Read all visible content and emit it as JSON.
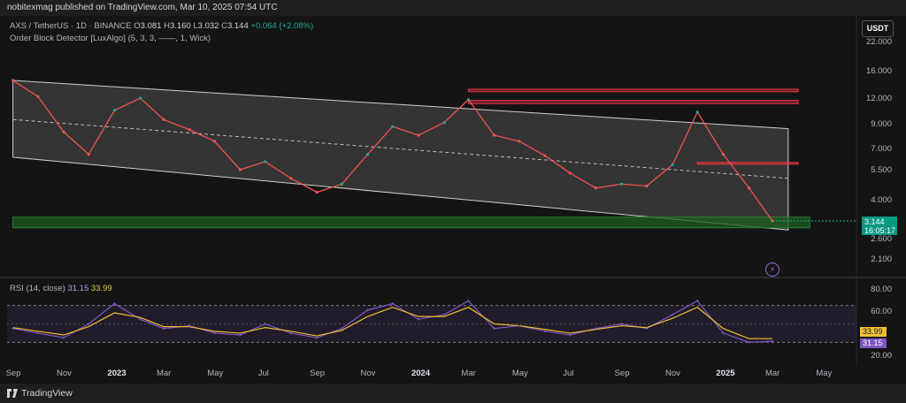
{
  "header": {
    "publisher": "nobitexmag published on TradingView.com, Mar 10, 2025 07:54 UTC"
  },
  "legend": {
    "symbol": "AXS / TetherUS · 1D · BINANCE",
    "o_label": "O",
    "o": "3.081",
    "h_label": "H",
    "h": "3.160",
    "l_label": "L",
    "l": "3.032",
    "c_label": "C",
    "c": "3.144",
    "change": "+0.064 (+2.08%)",
    "indicator": "Order Block Detector [LuxAlgo] (5, 3, 3, ——, 1, Wick)"
  },
  "price_axis": {
    "currency": "USDT",
    "ticks": [
      "22.000",
      "16.000",
      "12.000",
      "9.000",
      "7.000",
      "5.500",
      "4.000",
      "2.600",
      "2.100"
    ]
  },
  "price_tag": {
    "price": "3.144",
    "countdown": "16:05:17"
  },
  "rsi": {
    "label": "RSI (14, close)",
    "rsi_value": "31.15",
    "ma_value": "33.99",
    "ticks": [
      "80.00",
      "60.00",
      "20.00"
    ],
    "upper_band": 70,
    "lower_band": 30
  },
  "colors": {
    "up": "#26a69a",
    "down": "#ef5350",
    "rsi": "#7e57c2",
    "rsi_ma": "#f0c030",
    "bull_ob": "#1b5e20",
    "bear_ob": "#f23645"
  },
  "footer": {
    "brand": "TradingView"
  },
  "chart_data": [
    {
      "type": "line",
      "title": "AXS / TetherUS · 1D · BINANCE",
      "scale": "log",
      "ylim": [
        1.7,
        26
      ],
      "x": [
        "2022-09",
        "2022-10",
        "2022-11",
        "2022-12",
        "2023-01",
        "2023-02",
        "2023-03",
        "2023-04",
        "2023-05",
        "2023-06",
        "2023-07",
        "2023-08",
        "2023-09",
        "2023-10",
        "2023-11",
        "2023-12",
        "2024-01",
        "2024-02",
        "2024-03",
        "2024-04",
        "2024-05",
        "2024-06",
        "2024-07",
        "2024-08",
        "2024-09",
        "2024-10",
        "2024-11",
        "2024-12",
        "2025-01",
        "2025-02",
        "2025-03"
      ],
      "x_ticks": [
        "Sep",
        "Nov",
        "2023",
        "Mar",
        "May",
        "Jul",
        "Sep",
        "Nov",
        "2024",
        "Mar",
        "May",
        "Jul",
        "Sep",
        "Nov",
        "2025",
        "Mar",
        "May"
      ],
      "series": [
        {
          "values": [
            14.5,
            12.2,
            8.3,
            6.5,
            10.5,
            12.0,
            9.5,
            8.5,
            7.5,
            5.5,
            6.0,
            5.0,
            4.3,
            4.7,
            6.5,
            8.8,
            8.0,
            9.2,
            11.8,
            8.0,
            7.5,
            6.4,
            5.3,
            4.5,
            4.7,
            4.6,
            5.8,
            10.3,
            6.5,
            4.5,
            3.144
          ]
        }
      ],
      "channel": {
        "upper": [
          14.5,
          8.6
        ],
        "lower": [
          6.3,
          2.85
        ],
        "mid": [
          9.5,
          5.0
        ]
      },
      "order_blocks": [
        {
          "kind": "bearish",
          "top": 13.2,
          "bottom": 12.85,
          "from": "2024-03"
        },
        {
          "kind": "bearish",
          "top": 11.7,
          "bottom": 11.3,
          "from": "2024-03"
        },
        {
          "kind": "bearish",
          "top": 5.95,
          "bottom": 5.85,
          "from": "2024-12"
        },
        {
          "kind": "bullish",
          "top": 3.28,
          "bottom": 2.92,
          "from": "2022-09"
        }
      ]
    },
    {
      "type": "line",
      "title": "RSI (14, close)",
      "ylim": [
        15,
        85
      ],
      "x": [
        "2022-09",
        "2022-10",
        "2022-11",
        "2022-12",
        "2023-01",
        "2023-02",
        "2023-03",
        "2023-04",
        "2023-05",
        "2023-06",
        "2023-07",
        "2023-08",
        "2023-09",
        "2023-10",
        "2023-11",
        "2023-12",
        "2024-01",
        "2024-02",
        "2024-03",
        "2024-04",
        "2024-05",
        "2024-06",
        "2024-07",
        "2024-08",
        "2024-09",
        "2024-10",
        "2024-11",
        "2024-12",
        "2025-01",
        "2025-02",
        "2025-03"
      ],
      "series": [
        {
          "values": [
            45,
            40,
            35,
            50,
            72,
            55,
            45,
            48,
            40,
            38,
            50,
            40,
            35,
            45,
            65,
            72,
            55,
            60,
            75,
            45,
            48,
            42,
            38,
            45,
            50,
            45,
            60,
            75,
            40,
            30,
            31.15
          ]
        },
        {
          "values": [
            46,
            42,
            38,
            47,
            62,
            57,
            47,
            47,
            42,
            40,
            46,
            42,
            37,
            43,
            58,
            68,
            58,
            58,
            68,
            50,
            48,
            44,
            40,
            44,
            48,
            46,
            56,
            68,
            45,
            34,
            33.99
          ]
        }
      ]
    }
  ]
}
